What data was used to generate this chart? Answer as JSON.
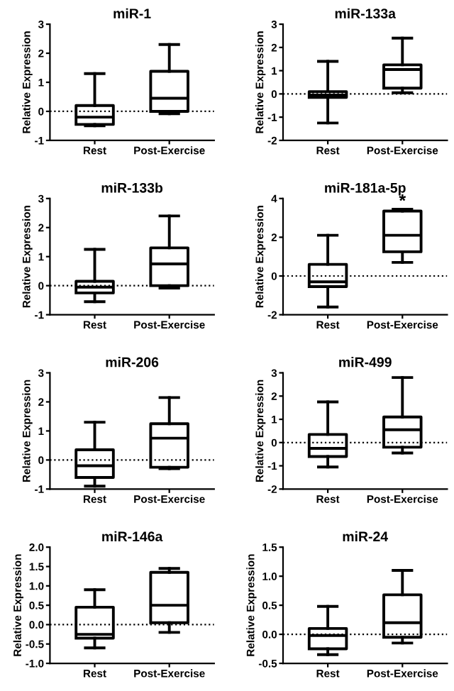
{
  "chart_data": [
    {
      "type": "box",
      "title": "miR-1",
      "ylabel": "Relative Expression",
      "categories": [
        "Rest",
        "Post-Exercise"
      ],
      "ylim": [
        -1,
        3
      ],
      "yticks": [
        -1,
        0,
        1,
        2,
        3
      ],
      "grid": false,
      "ref_lines": [
        {
          "axis": "y",
          "value": 0,
          "line_style": "dotted"
        }
      ],
      "boxes": [
        {
          "low": -0.5,
          "q1": -0.45,
          "median": -0.2,
          "q3": 0.2,
          "high": 1.3
        },
        {
          "low": -0.08,
          "q1": 0.0,
          "median": 0.45,
          "q3": 1.38,
          "high": 2.3
        }
      ]
    },
    {
      "type": "box",
      "title": "miR-133a",
      "ylabel": "Relative Expression",
      "categories": [
        "Rest",
        "Post-Exercise"
      ],
      "ylim": [
        -2,
        3
      ],
      "yticks": [
        -2,
        -1,
        0,
        1,
        2,
        3
      ],
      "grid": false,
      "ref_lines": [
        {
          "axis": "y",
          "value": 0,
          "line_style": "dotted"
        }
      ],
      "boxes": [
        {
          "low": -1.25,
          "q1": -0.15,
          "median": -0.05,
          "q3": 0.1,
          "high": 1.4
        },
        {
          "low": 0.05,
          "q1": 0.25,
          "median": 1.05,
          "q3": 1.25,
          "high": 2.4
        }
      ]
    },
    {
      "type": "box",
      "title": "miR-133b",
      "ylabel": "Relative Expression",
      "categories": [
        "Rest",
        "Post-Exercise"
      ],
      "ylim": [
        -1,
        3
      ],
      "yticks": [
        -1,
        0,
        1,
        2,
        3
      ],
      "grid": false,
      "ref_lines": [
        {
          "axis": "y",
          "value": 0,
          "line_style": "dotted"
        }
      ],
      "boxes": [
        {
          "low": -0.55,
          "q1": -0.25,
          "median": -0.05,
          "q3": 0.15,
          "high": 1.25
        },
        {
          "low": -0.08,
          "q1": 0.0,
          "median": 0.75,
          "q3": 1.3,
          "high": 2.4
        }
      ]
    },
    {
      "type": "box",
      "title": "miR-181a-5p",
      "ylabel": "Relative Expression",
      "categories": [
        "Rest",
        "Post-Exercise"
      ],
      "ylim": [
        -2,
        4
      ],
      "yticks": [
        -2,
        0,
        2,
        4
      ],
      "grid": false,
      "ref_lines": [
        {
          "axis": "y",
          "value": 0,
          "line_style": "dotted"
        }
      ],
      "annotations": [
        "*"
      ],
      "boxes": [
        {
          "low": -1.6,
          "q1": -0.55,
          "median": -0.3,
          "q3": 0.6,
          "high": 2.1
        },
        {
          "low": 0.7,
          "q1": 1.25,
          "median": 2.1,
          "q3": 3.35,
          "high": 3.45
        }
      ]
    },
    {
      "type": "box",
      "title": "miR-206",
      "ylabel": "Relative Expression",
      "categories": [
        "Rest",
        "Post-Exercise"
      ],
      "ylim": [
        -1,
        3
      ],
      "yticks": [
        -1,
        0,
        1,
        2,
        3
      ],
      "grid": false,
      "ref_lines": [
        {
          "axis": "y",
          "value": 0,
          "line_style": "dotted"
        }
      ],
      "boxes": [
        {
          "low": -0.9,
          "q1": -0.6,
          "median": -0.2,
          "q3": 0.35,
          "high": 1.3
        },
        {
          "low": -0.3,
          "q1": -0.25,
          "median": 0.75,
          "q3": 1.25,
          "high": 2.15
        }
      ]
    },
    {
      "type": "box",
      "title": "miR-499",
      "ylabel": "Relative Expression",
      "categories": [
        "Rest",
        "Post-Exercise"
      ],
      "ylim": [
        -2,
        3
      ],
      "yticks": [
        -2,
        -1,
        0,
        1,
        2,
        3
      ],
      "grid": false,
      "ref_lines": [
        {
          "axis": "y",
          "value": 0,
          "line_style": "dotted"
        }
      ],
      "boxes": [
        {
          "low": -1.05,
          "q1": -0.6,
          "median": -0.25,
          "q3": 0.35,
          "high": 1.75
        },
        {
          "low": -0.45,
          "q1": -0.2,
          "median": 0.55,
          "q3": 1.1,
          "high": 2.8
        }
      ]
    },
    {
      "type": "box",
      "title": "miR-146a",
      "ylabel": "Relative Expression",
      "categories": [
        "Rest",
        "Post-Exercise"
      ],
      "ylim": [
        -1,
        2
      ],
      "yticks": [
        {
          "value": -1,
          "label": "-1.0"
        },
        {
          "value": -0.5,
          "label": "-0.5"
        },
        {
          "value": 0,
          "label": "0.0"
        },
        {
          "value": 0.5,
          "label": "0.5"
        },
        {
          "value": 1,
          "label": "1.0"
        },
        {
          "value": 1.5,
          "label": "1.5"
        },
        {
          "value": 2,
          "label": "2.0"
        }
      ],
      "grid": false,
      "ref_lines": [
        {
          "axis": "y",
          "value": 0,
          "line_style": "dotted"
        }
      ],
      "boxes": [
        {
          "low": -0.6,
          "q1": -0.35,
          "median": -0.25,
          "q3": 0.45,
          "high": 0.9
        },
        {
          "low": -0.2,
          "q1": 0.05,
          "median": 0.5,
          "q3": 1.35,
          "high": 1.45
        }
      ]
    },
    {
      "type": "box",
      "title": "miR-24",
      "ylabel": "Relative Expression",
      "categories": [
        "Rest",
        "Post-Exercise"
      ],
      "ylim": [
        -0.5,
        1.5
      ],
      "yticks": [
        {
          "value": -0.5,
          "label": "-0.5"
        },
        {
          "value": 0,
          "label": "0.0"
        },
        {
          "value": 0.5,
          "label": "0.5"
        },
        {
          "value": 1,
          "label": "1.0"
        },
        {
          "value": 1.5,
          "label": "1.5"
        }
      ],
      "grid": false,
      "ref_lines": [
        {
          "axis": "y",
          "value": 0,
          "line_style": "dotted"
        }
      ],
      "boxes": [
        {
          "low": -0.35,
          "q1": -0.25,
          "median": -0.02,
          "q3": 0.1,
          "high": 0.48
        },
        {
          "low": -0.15,
          "q1": -0.05,
          "median": 0.2,
          "q3": 0.68,
          "high": 1.1
        }
      ]
    }
  ]
}
